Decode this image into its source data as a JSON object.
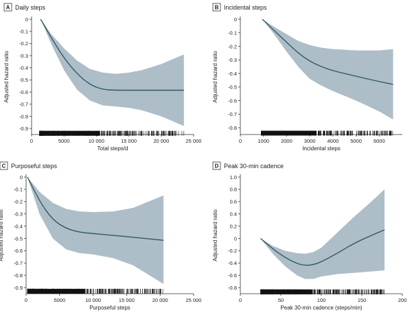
{
  "figure": {
    "panels_count": 4
  },
  "chart_data": [
    {
      "type": "line",
      "panel_letter": "A",
      "title": "Daily steps",
      "xlabel": "Total steps/d",
      "ylabel": "Adjusted hazard ratio",
      "xlim": [
        0,
        25000
      ],
      "ylim": [
        -0.95,
        0
      ],
      "xticks": [
        0,
        5000,
        10000,
        15000,
        20000,
        25000
      ],
      "xtick_labels": [
        "0",
        "5000",
        "10 000",
        "15 000",
        "20 000",
        "25 000"
      ],
      "yticks": [
        0,
        -0.1,
        -0.2,
        -0.3,
        -0.4,
        -0.5,
        -0.6,
        -0.7,
        -0.8,
        -0.9
      ],
      "ytick_labels": [
        "0",
        "-0.1",
        "-0.2",
        "-0.3",
        "-0.4",
        "-0.5",
        "-0.6",
        "-0.7",
        "-0.8",
        "-0.9"
      ],
      "rug_y": -0.94,
      "rug_range": [
        1200,
        23500
      ],
      "series": [
        {
          "name": "estimate",
          "x": [
            1400,
            3000,
            5000,
            7000,
            9000,
            11000,
            13000,
            15000,
            17000,
            20000,
            23500
          ],
          "values": [
            0,
            -0.15,
            -0.32,
            -0.45,
            -0.54,
            -0.58,
            -0.585,
            -0.585,
            -0.585,
            -0.585,
            -0.585
          ]
        },
        {
          "name": "upper",
          "x": [
            1400,
            3000,
            5000,
            7000,
            9000,
            11000,
            13000,
            15000,
            17000,
            20000,
            23500
          ],
          "values": [
            0,
            -0.12,
            -0.24,
            -0.34,
            -0.41,
            -0.44,
            -0.45,
            -0.44,
            -0.42,
            -0.37,
            -0.29
          ]
        },
        {
          "name": "lower",
          "x": [
            1400,
            3000,
            5000,
            7000,
            9000,
            11000,
            13000,
            15000,
            17000,
            20000,
            23500
          ],
          "values": [
            0,
            -0.2,
            -0.42,
            -0.58,
            -0.67,
            -0.71,
            -0.72,
            -0.73,
            -0.75,
            -0.8,
            -0.88
          ]
        }
      ]
    },
    {
      "type": "line",
      "panel_letter": "B",
      "title": "Incidental steps",
      "xlabel": "Incidental steps",
      "ylabel": "Adjusted hazard ratio",
      "xlim": [
        0,
        7000
      ],
      "ylim": [
        -0.85,
        0
      ],
      "xticks": [
        0,
        1000,
        2000,
        3000,
        4000,
        5000,
        6000
      ],
      "xtick_labels": [
        "0",
        "1000",
        "2000",
        "3000",
        "4000",
        "5000",
        "6000"
      ],
      "yticks": [
        0,
        -0.1,
        -0.2,
        -0.3,
        -0.4,
        -0.5,
        -0.6,
        -0.7,
        -0.8
      ],
      "ytick_labels": [
        "0",
        "-0.1",
        "-0.2",
        "-0.3",
        "-0.4",
        "-0.5",
        "-0.6",
        "-0.7",
        "-0.8"
      ],
      "rug_y": -0.84,
      "rug_range": [
        900,
        6600
      ],
      "series": [
        {
          "name": "estimate",
          "x": [
            950,
            1500,
            2000,
            2500,
            3000,
            3500,
            4000,
            5000,
            6000,
            6600
          ],
          "values": [
            0,
            -0.09,
            -0.17,
            -0.25,
            -0.31,
            -0.35,
            -0.38,
            -0.42,
            -0.46,
            -0.48
          ]
        },
        {
          "name": "upper",
          "x": [
            950,
            1500,
            2000,
            2500,
            3000,
            3500,
            4000,
            5000,
            6000,
            6600
          ],
          "values": [
            0,
            -0.06,
            -0.11,
            -0.16,
            -0.19,
            -0.21,
            -0.22,
            -0.23,
            -0.23,
            -0.22
          ]
        },
        {
          "name": "lower",
          "x": [
            950,
            1500,
            2000,
            2500,
            3000,
            3500,
            4000,
            5000,
            6000,
            6600
          ],
          "values": [
            0,
            -0.12,
            -0.24,
            -0.35,
            -0.44,
            -0.49,
            -0.53,
            -0.6,
            -0.68,
            -0.74
          ]
        }
      ]
    },
    {
      "type": "line",
      "panel_letter": "C",
      "title": "Purposeful steps",
      "xlabel": "Purposeful steps",
      "ylabel": "Adjusted hazard ratio",
      "xlim": [
        0,
        25000
      ],
      "ylim": [
        -0.95,
        0
      ],
      "xticks": [
        0,
        5000,
        10000,
        15000,
        20000,
        25000
      ],
      "xtick_labels": [
        "0",
        "5000",
        "10 000",
        "15 000",
        "20 000",
        "25 000"
      ],
      "yticks": [
        0,
        -0.1,
        -0.2,
        -0.3,
        -0.4,
        -0.5,
        -0.6,
        -0.7,
        -0.8,
        -0.9
      ],
      "ytick_labels": [
        "0",
        "-0.1",
        "-0.2",
        "-0.3",
        "-0.4",
        "-0.5",
        "-0.6",
        "-0.7",
        "-0.8",
        "-0.9"
      ],
      "rug_y": -0.93,
      "rug_range": [
        200,
        20500
      ],
      "series": [
        {
          "name": "estimate",
          "x": [
            200,
            2000,
            4000,
            6000,
            8000,
            10000,
            13000,
            16000,
            20500
          ],
          "values": [
            0,
            -0.2,
            -0.35,
            -0.42,
            -0.45,
            -0.46,
            -0.475,
            -0.49,
            -0.515
          ]
        },
        {
          "name": "upper",
          "x": [
            200,
            2000,
            4000,
            6000,
            8000,
            10000,
            13000,
            16000,
            20500
          ],
          "values": [
            0,
            -0.12,
            -0.21,
            -0.26,
            -0.28,
            -0.285,
            -0.28,
            -0.25,
            -0.15
          ]
        },
        {
          "name": "lower",
          "x": [
            200,
            2000,
            4000,
            6000,
            8000,
            10000,
            13000,
            16000,
            20500
          ],
          "values": [
            0,
            -0.3,
            -0.5,
            -0.59,
            -0.62,
            -0.63,
            -0.66,
            -0.72,
            -0.87
          ]
        }
      ]
    },
    {
      "type": "line",
      "panel_letter": "D",
      "title": "Peak 30-min cadence",
      "xlabel": "Peak 30-min cadence (steps/min)",
      "ylabel": "Adjusted hazard ratio",
      "xlim": [
        0,
        200
      ],
      "ylim": [
        -0.9,
        1.0
      ],
      "xticks": [
        0,
        50,
        100,
        150,
        200
      ],
      "xtick_labels": [
        "0",
        "50",
        "100",
        "150",
        "200"
      ],
      "yticks": [
        1.0,
        0.8,
        0.6,
        0.4,
        0.2,
        0,
        -0.2,
        -0.4,
        -0.6,
        -0.8
      ],
      "ytick_labels": [
        "1.0",
        "0.8",
        "0.6",
        "0.4",
        "0.2",
        "0",
        "-0.2",
        "-0.4",
        "-0.6",
        "-0.8"
      ],
      "rug_y": -0.87,
      "rug_range": [
        25,
        178
      ],
      "series": [
        {
          "name": "estimate",
          "x": [
            25,
            40,
            55,
            70,
            80,
            90,
            100,
            120,
            140,
            160,
            178
          ],
          "values": [
            0,
            -0.17,
            -0.31,
            -0.41,
            -0.44,
            -0.43,
            -0.38,
            -0.24,
            -0.08,
            0.04,
            0.14
          ]
        },
        {
          "name": "upper",
          "x": [
            25,
            40,
            55,
            70,
            80,
            90,
            100,
            120,
            140,
            160,
            178
          ],
          "values": [
            0,
            -0.12,
            -0.2,
            -0.24,
            -0.25,
            -0.22,
            -0.15,
            0.1,
            0.35,
            0.58,
            0.8
          ]
        },
        {
          "name": "lower",
          "x": [
            25,
            40,
            55,
            70,
            80,
            90,
            100,
            120,
            140,
            160,
            178
          ],
          "values": [
            0,
            -0.25,
            -0.45,
            -0.6,
            -0.66,
            -0.66,
            -0.62,
            -0.58,
            -0.56,
            -0.54,
            -0.52
          ]
        }
      ]
    }
  ]
}
